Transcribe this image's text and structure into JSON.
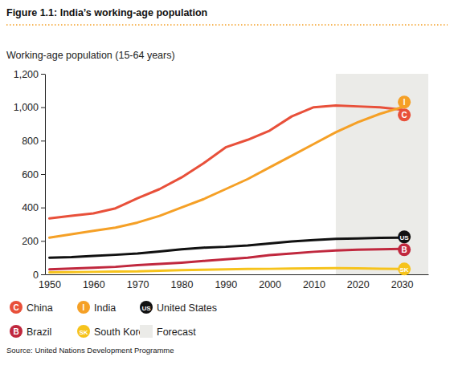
{
  "chart_data": {
    "type": "line",
    "title": "Figure 1.1: India’s working-age population",
    "subtitle": "Working-age population (15-64 years)",
    "source": "Source: United Nations Development Programme",
    "x": [
      1950,
      1955,
      1960,
      1965,
      1970,
      1975,
      1980,
      1985,
      1990,
      1995,
      2000,
      2005,
      2010,
      2015,
      2020,
      2025,
      2030
    ],
    "series": [
      {
        "name": "China",
        "abbr": "C",
        "color": "#e8503a",
        "values": [
          335,
          350,
          365,
          395,
          455,
          510,
          580,
          665,
          760,
          805,
          860,
          945,
          1000,
          1010,
          1005,
          1000,
          985
        ]
      },
      {
        "name": "India",
        "abbr": "I",
        "color": "#f5a026",
        "values": [
          220,
          240,
          260,
          280,
          310,
          350,
          400,
          450,
          510,
          570,
          640,
          710,
          780,
          850,
          910,
          960,
          1000
        ]
      },
      {
        "name": "United States",
        "abbr": "US",
        "color": "#111111",
        "values": [
          100,
          103,
          110,
          117,
          125,
          137,
          150,
          160,
          165,
          173,
          185,
          197,
          205,
          212,
          215,
          218,
          220
        ]
      },
      {
        "name": "Brazil",
        "abbr": "B",
        "color": "#c0283e",
        "values": [
          30,
          35,
          40,
          45,
          55,
          62,
          70,
          80,
          90,
          100,
          115,
          125,
          135,
          143,
          148,
          150,
          152
        ]
      },
      {
        "name": "South Korea",
        "abbr": "SK",
        "color": "#f6c31c",
        "values": [
          12,
          13,
          15,
          17,
          18,
          22,
          25,
          28,
          30,
          32,
          33,
          35,
          36,
          37,
          36,
          34,
          32
        ]
      }
    ],
    "forecast": {
      "label": "Forecast",
      "color": "#ebebe8",
      "x": [
        2015,
        2036
      ]
    },
    "xlim": [
      1949,
      2036
    ],
    "xticks": [
      1950,
      1960,
      1970,
      1980,
      1990,
      2000,
      2010,
      2020,
      2030
    ],
    "ylim": [
      0,
      1200
    ],
    "yticks": [
      0,
      200,
      400,
      600,
      800,
      {
        "value": 1000,
        "label": "1,000"
      },
      {
        "value": 1200,
        "label": "1,200"
      }
    ],
    "grid": false,
    "legend": "bottom"
  }
}
